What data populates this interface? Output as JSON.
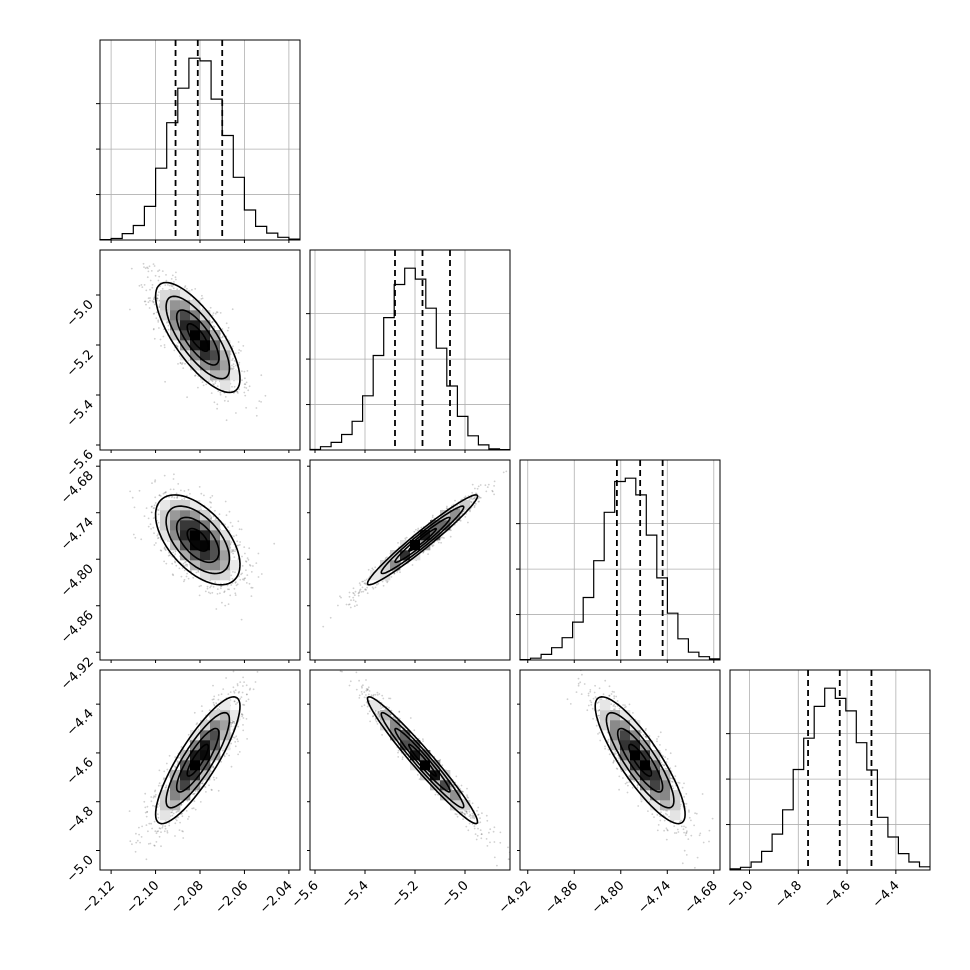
{
  "chart_data": {
    "type": "corner",
    "title": "",
    "params": [
      {
        "mean": -2.081,
        "sd": 0.0095,
        "range": [
          -2.125,
          -2.035
        ],
        "ticks": [
          -2.12,
          -2.1,
          -2.08,
          -2.06,
          -2.04
        ],
        "tick_labels": [
          "−2.12",
          "−2.10",
          "−2.08",
          "−2.06",
          "−2.04"
        ],
        "quantiles": [
          -2.091,
          -2.081,
          -2.07
        ]
      },
      {
        "mean": -5.17,
        "sd": 0.11,
        "range": [
          -5.62,
          -4.82
        ],
        "ticks": [
          -5.6,
          -5.4,
          -5.2,
          -5.0
        ],
        "tick_labels": [
          "−5.6",
          "−5.4",
          "−5.2",
          "−5.0"
        ],
        "quantiles": [
          -5.28,
          -5.17,
          -5.06
        ]
      },
      {
        "mean": -4.775,
        "sd": 0.029,
        "range": [
          -4.93,
          -4.672
        ],
        "ticks": [
          -4.92,
          -4.86,
          -4.8,
          -4.74,
          -4.68
        ],
        "tick_labels": [
          "−4.92",
          "−4.86",
          "−4.80",
          "−4.74",
          "−4.68"
        ],
        "quantiles": [
          -4.805,
          -4.775,
          -4.746
        ]
      },
      {
        "mean": -4.63,
        "sd": 0.13,
        "range": [
          -5.08,
          -4.26
        ],
        "ticks": [
          -5.0,
          -4.8,
          -4.6,
          -4.4
        ],
        "tick_labels": [
          "−5.0",
          "−4.8",
          "−4.6",
          "−4.4"
        ],
        "quantiles": [
          -4.76,
          -4.63,
          -4.5
        ]
      }
    ],
    "correlations": {
      "1-0": -0.75,
      "2-0": -0.55,
      "2-1": 0.97,
      "3-0": 0.85,
      "3-1": -0.97,
      "3-2": -0.85
    },
    "histograms": [
      {
        "counts": [
          2,
          8,
          35,
          80,
          185,
          395,
          645,
          835,
          1000,
          985,
          775,
          575,
          345,
          165,
          75,
          38,
          15,
          5
        ]
      },
      {
        "counts": [
          3,
          18,
          42,
          85,
          158,
          298,
          520,
          728,
          910,
          1000,
          940,
          780,
          560,
          352,
          185,
          78,
          28,
          6,
          2
        ]
      },
      {
        "counts": [
          2,
          8,
          25,
          55,
          100,
          170,
          280,
          445,
          662,
          800,
          815,
          740,
          560,
          368,
          210,
          95,
          35,
          15,
          5
        ]
      },
      {
        "counts": [
          5,
          12,
          35,
          82,
          158,
          265,
          442,
          580,
          720,
          800,
          755,
          700,
          560,
          440,
          232,
          145,
          72,
          35,
          14
        ]
      }
    ],
    "grid": true,
    "contour_levels": [
      0.5,
      1.0,
      1.5,
      2.0
    ],
    "scatter_points_per_panel": 1400
  }
}
